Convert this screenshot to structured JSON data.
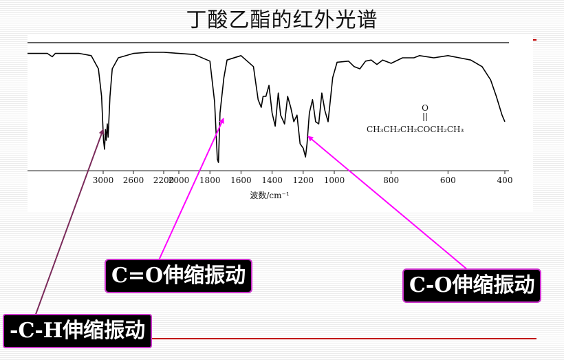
{
  "slide": {
    "title": "丁酸乙酯的红外光谱"
  },
  "labels": {
    "co_double": "C=O伸缩振动",
    "co_single": "C-O伸缩振动",
    "ch": "-C-H伸缩振动"
  },
  "structure_formula": "CH₃CH₂CH₂COCH₂CH₃",
  "structure_carbonyl_o": "O",
  "colors": {
    "arrow_dark": "#7a2a5a",
    "arrow_magenta": "#ff00ff",
    "label_border": "#cc33cc",
    "accent_red": "#c00000"
  },
  "chart_data": {
    "type": "line",
    "xlabel": "波数/cm⁻¹",
    "x_ticks": [
      3000,
      2600,
      2200,
      2000,
      1800,
      1600,
      1400,
      1200,
      1000,
      800,
      600,
      400
    ],
    "y_axis_visible": false,
    "series": [
      {
        "points": [
          [
            3950,
            0.06
          ],
          [
            3700,
            0.06
          ],
          [
            3640,
            0.09
          ],
          [
            3600,
            0.06
          ],
          [
            3300,
            0.06
          ],
          [
            3150,
            0.08
          ],
          [
            3060,
            0.2
          ],
          [
            3020,
            0.45
          ],
          [
            2995,
            0.85
          ],
          [
            2982,
            0.93
          ],
          [
            2970,
            0.75
          ],
          [
            2960,
            0.85
          ],
          [
            2945,
            0.7
          ],
          [
            2935,
            0.82
          ],
          [
            2910,
            0.45
          ],
          [
            2880,
            0.2
          ],
          [
            2800,
            0.1
          ],
          [
            2600,
            0.06
          ],
          [
            2400,
            0.05
          ],
          [
            2200,
            0.05
          ],
          [
            2000,
            0.06
          ],
          [
            1900,
            0.07
          ],
          [
            1800,
            0.13
          ],
          [
            1770,
            0.5
          ],
          [
            1752,
            1.02
          ],
          [
            1745,
            1.05
          ],
          [
            1735,
            0.6
          ],
          [
            1710,
            0.28
          ],
          [
            1690,
            0.12
          ],
          [
            1600,
            0.08
          ],
          [
            1520,
            0.18
          ],
          [
            1490,
            0.48
          ],
          [
            1470,
            0.55
          ],
          [
            1458,
            0.45
          ],
          [
            1440,
            0.45
          ],
          [
            1420,
            0.35
          ],
          [
            1400,
            0.6
          ],
          [
            1380,
            0.72
          ],
          [
            1360,
            0.42
          ],
          [
            1345,
            0.62
          ],
          [
            1320,
            0.7
          ],
          [
            1300,
            0.45
          ],
          [
            1280,
            0.55
          ],
          [
            1260,
            0.68
          ],
          [
            1240,
            0.62
          ],
          [
            1220,
            0.88
          ],
          [
            1200,
            0.92
          ],
          [
            1185,
            1.0
          ],
          [
            1175,
            0.88
          ],
          [
            1160,
            0.6
          ],
          [
            1140,
            0.48
          ],
          [
            1120,
            0.68
          ],
          [
            1100,
            0.7
          ],
          [
            1080,
            0.42
          ],
          [
            1060,
            0.58
          ],
          [
            1040,
            0.68
          ],
          [
            1030,
            0.55
          ],
          [
            1010,
            0.28
          ],
          [
            990,
            0.14
          ],
          [
            950,
            0.13
          ],
          [
            930,
            0.18
          ],
          [
            910,
            0.2
          ],
          [
            890,
            0.13
          ],
          [
            870,
            0.12
          ],
          [
            850,
            0.16
          ],
          [
            830,
            0.12
          ],
          [
            800,
            0.15
          ],
          [
            760,
            0.1
          ],
          [
            720,
            0.1
          ],
          [
            700,
            0.08
          ],
          [
            650,
            0.1
          ],
          [
            600,
            0.08
          ],
          [
            560,
            0.1
          ],
          [
            520,
            0.12
          ],
          [
            480,
            0.18
          ],
          [
            450,
            0.3
          ],
          [
            430,
            0.45
          ],
          [
            410,
            0.62
          ],
          [
            400,
            0.68
          ]
        ]
      }
    ]
  }
}
